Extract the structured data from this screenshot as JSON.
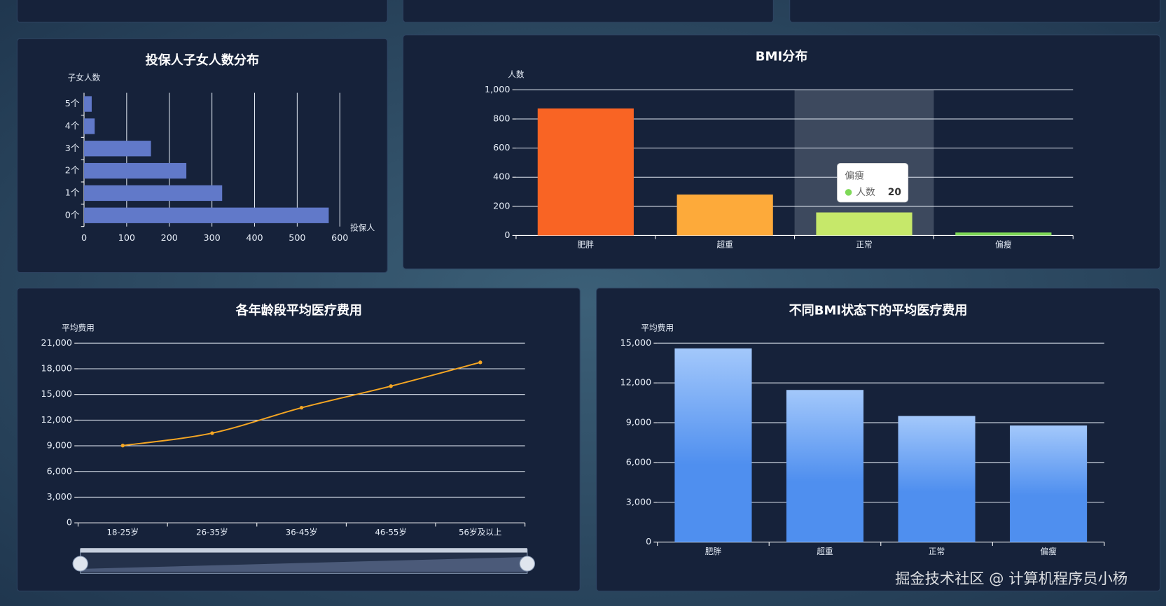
{
  "chart_data": [
    {
      "type": "bar",
      "horizontal": true,
      "title": "投保人子女人数分布",
      "y_label": "子女人数",
      "x_label": "投保人",
      "categories": [
        "0个",
        "1个",
        "2个",
        "3个",
        "4个",
        "5个"
      ],
      "values": [
        574,
        324,
        240,
        157,
        25,
        18
      ],
      "color": "#6179c9",
      "xlim": [
        0,
        600
      ],
      "xticks": [
        0,
        100,
        200,
        300,
        400,
        500,
        600
      ],
      "grid": true
    },
    {
      "type": "bar",
      "title": "BMI分布",
      "y_label": "人数",
      "categories": [
        "肥胖",
        "超重",
        "正常",
        "偏瘦"
      ],
      "values": [
        872,
        281,
        158,
        20
      ],
      "colors": [
        "#f96424",
        "#fdaa3a",
        "#c6e86a",
        "#7ed957"
      ],
      "ylim": [
        0,
        1000
      ],
      "yticks": [
        0,
        200,
        400,
        600,
        800,
        {
          "value": 1000,
          "label": "1,000"
        }
      ],
      "grid": true,
      "pointer_index": 2,
      "tooltip": {
        "index": 3,
        "series_name": "人数"
      }
    },
    {
      "type": "line",
      "smooth": true,
      "title": "各年龄段平均医疗费用",
      "y_label": "平均费用",
      "categories": [
        "18-25岁",
        "26-35岁",
        "36-45岁",
        "46-55岁",
        "56岁及以上"
      ],
      "values": [
        9030,
        10480,
        13450,
        15970,
        18750
      ],
      "color": "#f5a623",
      "ylim": [
        0,
        21000
      ],
      "yticks": [
        0,
        {
          "value": 3000,
          "label": "3,000"
        },
        {
          "value": 6000,
          "label": "6,000"
        },
        {
          "value": 9000,
          "label": "9,000"
        },
        {
          "value": 12000,
          "label": "12,000"
        },
        {
          "value": 15000,
          "label": "15,000"
        },
        {
          "value": 18000,
          "label": "18,000"
        },
        {
          "value": 21000,
          "label": "21,000"
        }
      ],
      "grid": true,
      "data_zoom": true
    },
    {
      "type": "bar",
      "title": "不同BMI状态下的平均医疗费用",
      "y_label": "平均费用",
      "categories": [
        "肥胖",
        "超重",
        "正常",
        "偏瘦"
      ],
      "values": [
        14600,
        11470,
        9510,
        8790
      ],
      "gradient": [
        "#a3c8fb",
        "#4f8fef"
      ],
      "ylim": [
        0,
        15000
      ],
      "yticks": [
        0,
        {
          "value": 3000,
          "label": "3,000"
        },
        {
          "value": 6000,
          "label": "6,000"
        },
        {
          "value": 9000,
          "label": "9,000"
        },
        {
          "value": 12000,
          "label": "12,000"
        },
        {
          "value": 15000,
          "label": "15,000"
        }
      ],
      "grid": true
    }
  ],
  "watermark": "掘金技术社区 @ 计算机程序员小杨"
}
